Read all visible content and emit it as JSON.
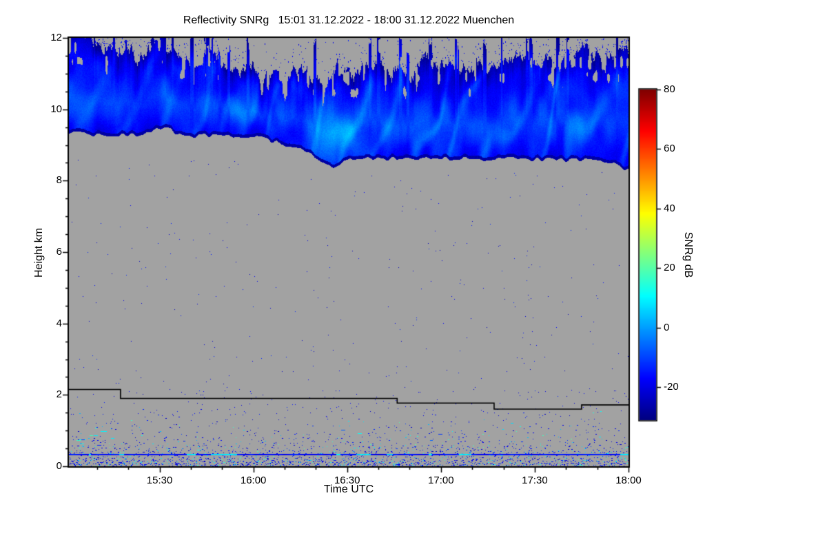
{
  "chart_data": {
    "type": "heatmap",
    "title": "Reflectivity SNRg   15:01 31.12.2022 - 18:00 31.12.2022 Muenchen",
    "xlabel": "Time UTC",
    "ylabel": "Height km",
    "x_start": "15:01",
    "x_end": "18:00",
    "x_ticks": [
      "15:30",
      "16:00",
      "16:30",
      "17:00",
      "17:30",
      "18:00"
    ],
    "x_minor_step_min": 10,
    "y_range": [
      0,
      12
    ],
    "y_ticks": [
      0,
      2,
      4,
      6,
      8,
      10,
      12
    ],
    "y_minor_step": 0.5,
    "colorbar": {
      "label": "SNRg dB",
      "ticks": [
        -20,
        0,
        20,
        40,
        60,
        80
      ],
      "vmin": -31,
      "vmax": 80,
      "colormap": "jet"
    },
    "colors": {
      "no_data_gray": "#a2a2a2",
      "page_bg": "#ffffff",
      "axis": "#000000"
    },
    "cloud_layer": {
      "description": "cirrus cloud band between ~8.3 and 12 km, SNR mostly -25..5 dB",
      "base_km_points": [
        [
          0,
          9.35
        ],
        [
          8,
          9.3
        ],
        [
          16,
          9.28
        ],
        [
          24,
          9.32
        ],
        [
          28,
          9.48
        ],
        [
          31,
          9.5
        ],
        [
          34,
          9.35
        ],
        [
          40,
          9.25
        ],
        [
          46,
          9.28
        ],
        [
          52,
          9.22
        ],
        [
          58,
          9.25
        ],
        [
          64,
          9.15
        ],
        [
          70,
          9.0
        ],
        [
          74,
          8.9
        ],
        [
          78,
          8.75
        ],
        [
          81,
          8.55
        ],
        [
          84,
          8.38
        ],
        [
          87,
          8.5
        ],
        [
          90,
          8.62
        ],
        [
          95,
          8.68
        ],
        [
          100,
          8.6
        ],
        [
          106,
          8.66
        ],
        [
          112,
          8.6
        ],
        [
          118,
          8.66
        ],
        [
          124,
          8.6
        ],
        [
          130,
          8.64
        ],
        [
          136,
          8.58
        ],
        [
          142,
          8.64
        ],
        [
          148,
          8.58
        ],
        [
          154,
          8.62
        ],
        [
          160,
          8.56
        ],
        [
          164,
          8.6
        ],
        [
          168,
          8.55
        ],
        [
          172,
          8.5
        ],
        [
          175,
          8.45
        ],
        [
          177,
          8.38
        ],
        [
          179,
          8.3
        ]
      ],
      "top_km_points": [
        [
          0,
          12.4
        ],
        [
          6,
          12.2
        ],
        [
          10,
          11.9
        ],
        [
          14,
          11.6
        ],
        [
          18,
          11.9
        ],
        [
          22,
          11.5
        ],
        [
          26,
          11.8
        ],
        [
          30,
          12.0
        ],
        [
          34,
          11.4
        ],
        [
          38,
          11.2
        ],
        [
          42,
          11.6
        ],
        [
          46,
          12.0
        ],
        [
          50,
          11.3
        ],
        [
          54,
          11.0
        ],
        [
          58,
          11.3
        ],
        [
          62,
          10.9
        ],
        [
          66,
          11.2
        ],
        [
          70,
          10.8
        ],
        [
          74,
          11.1
        ],
        [
          78,
          10.7
        ],
        [
          82,
          10.9
        ],
        [
          86,
          11.2
        ],
        [
          90,
          10.8
        ],
        [
          94,
          11.1
        ],
        [
          98,
          11.4
        ],
        [
          102,
          11.0
        ],
        [
          106,
          11.3
        ],
        [
          110,
          11.0
        ],
        [
          114,
          11.4
        ],
        [
          118,
          11.1
        ],
        [
          122,
          11.5
        ],
        [
          126,
          11.2
        ],
        [
          130,
          11.4
        ],
        [
          134,
          11.1
        ],
        [
          138,
          11.5
        ],
        [
          142,
          11.2
        ],
        [
          146,
          11.6
        ],
        [
          150,
          11.3
        ],
        [
          154,
          11.6
        ],
        [
          158,
          11.2
        ],
        [
          162,
          11.5
        ],
        [
          166,
          11.8
        ],
        [
          170,
          11.4
        ],
        [
          174,
          11.7
        ],
        [
          179,
          11.5
        ]
      ],
      "fallstreak_center_min": 86,
      "typical_snr_db": [
        -25,
        5
      ]
    },
    "lowest_gate_line_km": [
      [
        0,
        2.15
      ],
      [
        16.5,
        2.15
      ],
      [
        16.5,
        1.9
      ],
      [
        105,
        1.9
      ],
      [
        105,
        1.77
      ],
      [
        136,
        1.77
      ],
      [
        136,
        1.6
      ],
      [
        164,
        1.6
      ],
      [
        164,
        1.72
      ],
      [
        179,
        1.72
      ]
    ],
    "surface_line_km": 0.32,
    "noise_speckle_max_km": 1.6,
    "seed": 20221231
  }
}
